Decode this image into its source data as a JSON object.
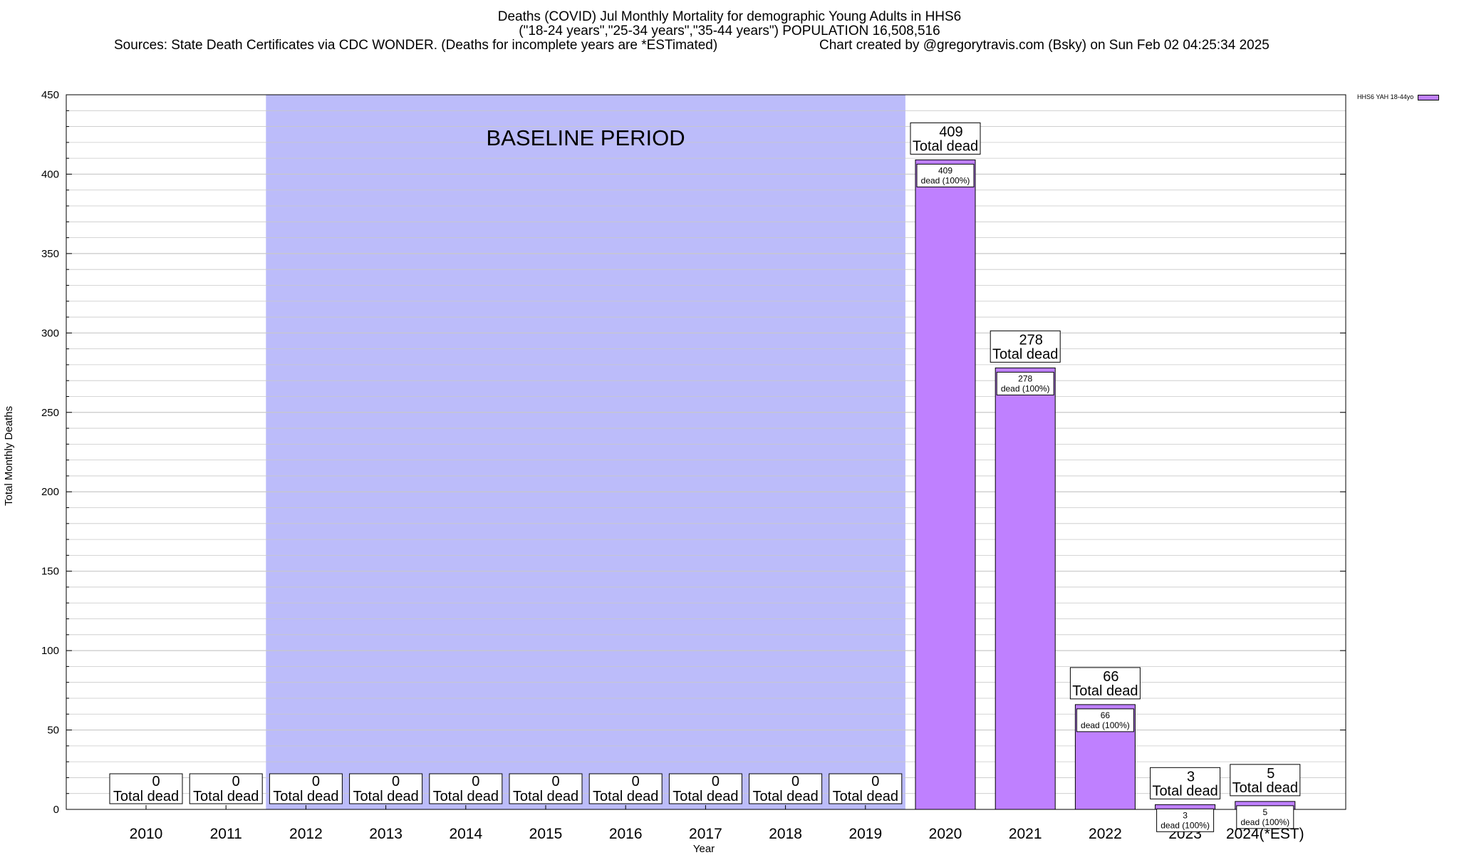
{
  "title_line1": "Deaths (COVID) Jul Monthly Mortality for demographic Young Adults in HHS6",
  "title_line2": "(\"18-24 years\",\"25-34 years\",\"35-44 years\") POPULATION 16,508,516",
  "title_line3": "Sources: State Death Certificates via CDC WONDER. (Deaths for incomplete years are *ESTimated)",
  "title_line4": "Chart created by @gregorytravis.com (Bsky) on Sun Feb 02 04:25:34 2025",
  "colors": {
    "bar": "#bf80ff",
    "baseline_band": "#bcbcfa",
    "grid": "#c8c8c8"
  },
  "chart_data": {
    "type": "bar",
    "xlabel": "Year",
    "ylabel": "Total Monthly Deaths",
    "ylim": [
      0,
      450
    ],
    "yticks": [
      0,
      50,
      100,
      150,
      200,
      250,
      300,
      350,
      400,
      450
    ],
    "grid": true,
    "legend_position": "top-right",
    "categories": [
      "2010",
      "2011",
      "2012",
      "2013",
      "2014",
      "2015",
      "2016",
      "2017",
      "2018",
      "2019",
      "2020",
      "2021",
      "2022",
      "2023",
      "2024(*EST)"
    ],
    "series": [
      {
        "name": "HHS6 YAH 18-44yo",
        "values": [
          0,
          0,
          0,
          0,
          0,
          0,
          0,
          0,
          0,
          0,
          409,
          278,
          66,
          3,
          5
        ]
      }
    ],
    "total_label": "Total dead",
    "segment_label": "dead (100%)",
    "annotations": [
      {
        "text": "BASELINE PERIOD",
        "x_start": "2012",
        "x_end": "2019"
      }
    ]
  }
}
